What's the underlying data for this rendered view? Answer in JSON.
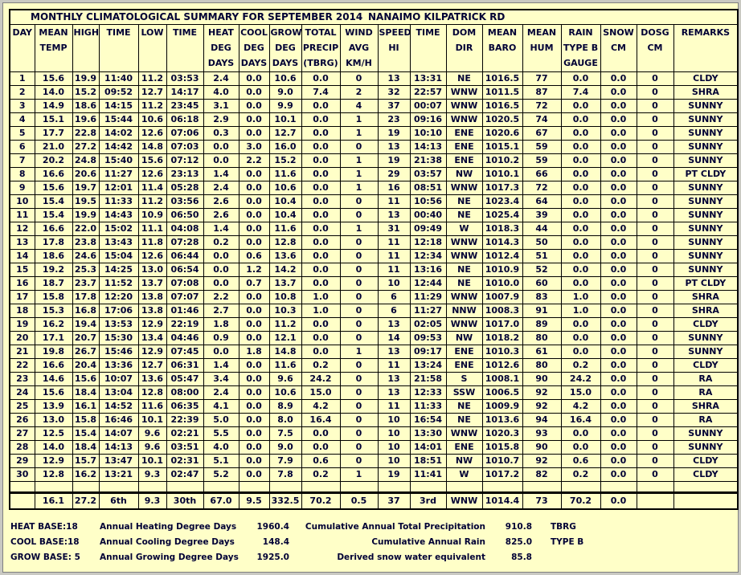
{
  "window": {
    "title_left": "MONTHLY CLIMATOLOGICAL SUMMARY FOR SEPTEMBER 2014",
    "title_right": "NANAIMO KILPATRICK RD"
  },
  "colors": {
    "background": "#FFFFC8",
    "text": "#000035",
    "grid_border": "#000000",
    "window_frame": "#C9C9C2"
  },
  "table": {
    "keys": [
      "day",
      "mean-temp",
      "high",
      "high-time",
      "low",
      "low-time",
      "heat-deg-days",
      "cool-deg-days",
      "grow-deg-days",
      "total-precip-tbrg",
      "wind-avg-kmh",
      "wind-speed-hi",
      "wind-time",
      "dom-dir",
      "mean-baro",
      "mean-hum",
      "rain-type-b-gauge",
      "snow-cm",
      "dosg-cm",
      "remarks"
    ],
    "headers": [
      [
        "DAY"
      ],
      [
        "MEAN",
        "TEMP"
      ],
      [
        "HIGH"
      ],
      [
        "TIME"
      ],
      [
        "LOW"
      ],
      [
        "TIME"
      ],
      [
        "HEAT",
        "DEG",
        "DAYS"
      ],
      [
        "COOL",
        "DEG",
        "DAYS"
      ],
      [
        "GROW",
        "DEG",
        "DAYS"
      ],
      [
        "TOTAL",
        "PRECIP",
        "(TBRG)"
      ],
      [
        "WIND",
        "AVG",
        "KM/H"
      ],
      [
        "SPEED",
        "HI"
      ],
      [
        "TIME"
      ],
      [
        "DOM",
        "DIR"
      ],
      [
        "MEAN",
        "BARO"
      ],
      [
        "MEAN",
        "HUM"
      ],
      [
        "RAIN",
        "TYPE B",
        "GAUGE"
      ],
      [
        "SNOW",
        "CM"
      ],
      [
        "DOSG",
        "CM"
      ],
      [
        "REMARKS"
      ]
    ],
    "rows": [
      [
        "1",
        "15.6",
        "19.9",
        "11:40",
        "11.2",
        "03:53",
        "2.4",
        "0.0",
        "10.6",
        "0.0",
        "0",
        "13",
        "13:31",
        "NE",
        "1016.5",
        "77",
        "0.0",
        "0.0",
        "0",
        "CLDY"
      ],
      [
        "2",
        "14.0",
        "15.2",
        "09:52",
        "12.7",
        "14:17",
        "4.0",
        "0.0",
        "9.0",
        "7.4",
        "2",
        "32",
        "22:57",
        "WNW",
        "1011.5",
        "87",
        "7.4",
        "0.0",
        "0",
        "SHRA"
      ],
      [
        "3",
        "14.9",
        "18.6",
        "14:15",
        "11.2",
        "23:45",
        "3.1",
        "0.0",
        "9.9",
        "0.0",
        "4",
        "37",
        "00:07",
        "WNW",
        "1016.5",
        "72",
        "0.0",
        "0.0",
        "0",
        "SUNNY"
      ],
      [
        "4",
        "15.1",
        "19.6",
        "15:44",
        "10.6",
        "06:18",
        "2.9",
        "0.0",
        "10.1",
        "0.0",
        "1",
        "23",
        "09:16",
        "WNW",
        "1020.5",
        "74",
        "0.0",
        "0.0",
        "0",
        "SUNNY"
      ],
      [
        "5",
        "17.7",
        "22.8",
        "14:02",
        "12.6",
        "07:06",
        "0.3",
        "0.0",
        "12.7",
        "0.0",
        "1",
        "19",
        "10:10",
        "ENE",
        "1020.6",
        "67",
        "0.0",
        "0.0",
        "0",
        "SUNNY"
      ],
      [
        "6",
        "21.0",
        "27.2",
        "14:42",
        "14.8",
        "07:03",
        "0.0",
        "3.0",
        "16.0",
        "0.0",
        "0",
        "13",
        "14:13",
        "ENE",
        "1015.1",
        "59",
        "0.0",
        "0.0",
        "0",
        "SUNNY"
      ],
      [
        "7",
        "20.2",
        "24.8",
        "15:40",
        "15.6",
        "07:12",
        "0.0",
        "2.2",
        "15.2",
        "0.0",
        "1",
        "19",
        "21:38",
        "ENE",
        "1010.2",
        "59",
        "0.0",
        "0.0",
        "0",
        "SUNNY"
      ],
      [
        "8",
        "16.6",
        "20.6",
        "11:27",
        "12.6",
        "23:13",
        "1.4",
        "0.0",
        "11.6",
        "0.0",
        "1",
        "29",
        "03:57",
        "NW",
        "1010.1",
        "66",
        "0.0",
        "0.0",
        "0",
        "PT CLDY"
      ],
      [
        "9",
        "15.6",
        "19.7",
        "12:01",
        "11.4",
        "05:28",
        "2.4",
        "0.0",
        "10.6",
        "0.0",
        "1",
        "16",
        "08:51",
        "WNW",
        "1017.3",
        "72",
        "0.0",
        "0.0",
        "0",
        "SUNNY"
      ],
      [
        "10",
        "15.4",
        "19.5",
        "11:33",
        "11.2",
        "03:56",
        "2.6",
        "0.0",
        "10.4",
        "0.0",
        "0",
        "11",
        "10:56",
        "NE",
        "1023.4",
        "64",
        "0.0",
        "0.0",
        "0",
        "SUNNY"
      ],
      [
        "11",
        "15.4",
        "19.9",
        "14:43",
        "10.9",
        "06:50",
        "2.6",
        "0.0",
        "10.4",
        "0.0",
        "0",
        "13",
        "00:40",
        "NE",
        "1025.4",
        "39",
        "0.0",
        "0.0",
        "0",
        "SUNNY"
      ],
      [
        "12",
        "16.6",
        "22.0",
        "15:02",
        "11.1",
        "04:08",
        "1.4",
        "0.0",
        "11.6",
        "0.0",
        "1",
        "31",
        "09:49",
        "W",
        "1018.3",
        "44",
        "0.0",
        "0.0",
        "0",
        "SUNNY"
      ],
      [
        "13",
        "17.8",
        "23.8",
        "13:43",
        "11.8",
        "07:28",
        "0.2",
        "0.0",
        "12.8",
        "0.0",
        "0",
        "11",
        "12:18",
        "WNW",
        "1014.3",
        "50",
        "0.0",
        "0.0",
        "0",
        "SUNNY"
      ],
      [
        "14",
        "18.6",
        "24.6",
        "15:04",
        "12.6",
        "06:44",
        "0.0",
        "0.6",
        "13.6",
        "0.0",
        "0",
        "11",
        "12:34",
        "WNW",
        "1012.4",
        "51",
        "0.0",
        "0.0",
        "0",
        "SUNNY"
      ],
      [
        "15",
        "19.2",
        "25.3",
        "14:25",
        "13.0",
        "06:54",
        "0.0",
        "1.2",
        "14.2",
        "0.0",
        "0",
        "11",
        "13:16",
        "NE",
        "1010.9",
        "52",
        "0.0",
        "0.0",
        "0",
        "SUNNY"
      ],
      [
        "16",
        "18.7",
        "23.7",
        "11:52",
        "13.7",
        "07:08",
        "0.0",
        "0.7",
        "13.7",
        "0.0",
        "0",
        "10",
        "12:44",
        "NE",
        "1010.0",
        "60",
        "0.0",
        "0.0",
        "0",
        "PT CLDY"
      ],
      [
        "17",
        "15.8",
        "17.8",
        "12:20",
        "13.8",
        "07:07",
        "2.2",
        "0.0",
        "10.8",
        "1.0",
        "0",
        "6",
        "11:29",
        "WNW",
        "1007.9",
        "83",
        "1.0",
        "0.0",
        "0",
        "SHRA"
      ],
      [
        "18",
        "15.3",
        "16.8",
        "17:06",
        "13.8",
        "01:46",
        "2.7",
        "0.0",
        "10.3",
        "1.0",
        "0",
        "6",
        "11:27",
        "NNW",
        "1008.3",
        "91",
        "1.0",
        "0.0",
        "0",
        "SHRA"
      ],
      [
        "19",
        "16.2",
        "19.4",
        "13:53",
        "12.9",
        "22:19",
        "1.8",
        "0.0",
        "11.2",
        "0.0",
        "0",
        "13",
        "02:05",
        "WNW",
        "1017.0",
        "89",
        "0.0",
        "0.0",
        "0",
        "CLDY"
      ],
      [
        "20",
        "17.1",
        "20.7",
        "15:30",
        "13.4",
        "04:46",
        "0.9",
        "0.0",
        "12.1",
        "0.0",
        "0",
        "14",
        "09:53",
        "NW",
        "1018.2",
        "80",
        "0.0",
        "0.0",
        "0",
        "SUNNY"
      ],
      [
        "21",
        "19.8",
        "26.7",
        "15:46",
        "12.9",
        "07:45",
        "0.0",
        "1.8",
        "14.8",
        "0.0",
        "1",
        "13",
        "09:17",
        "ENE",
        "1010.3",
        "61",
        "0.0",
        "0.0",
        "0",
        "SUNNY"
      ],
      [
        "22",
        "16.6",
        "20.4",
        "13:36",
        "12.7",
        "06:31",
        "1.4",
        "0.0",
        "11.6",
        "0.2",
        "0",
        "11",
        "13:24",
        "ENE",
        "1012.6",
        "80",
        "0.2",
        "0.0",
        "0",
        "CLDY"
      ],
      [
        "23",
        "14.6",
        "15.6",
        "10:07",
        "13.6",
        "05:47",
        "3.4",
        "0.0",
        "9.6",
        "24.2",
        "0",
        "13",
        "21:58",
        "S",
        "1008.1",
        "90",
        "24.2",
        "0.0",
        "0",
        "RA"
      ],
      [
        "24",
        "15.6",
        "18.4",
        "13:04",
        "12.8",
        "08:00",
        "2.4",
        "0.0",
        "10.6",
        "15.0",
        "0",
        "13",
        "12:33",
        "SSW",
        "1006.5",
        "92",
        "15.0",
        "0.0",
        "0",
        "RA"
      ],
      [
        "25",
        "13.9",
        "16.1",
        "14:52",
        "11.6",
        "06:35",
        "4.1",
        "0.0",
        "8.9",
        "4.2",
        "0",
        "11",
        "11:33",
        "NE",
        "1009.9",
        "92",
        "4.2",
        "0.0",
        "0",
        "SHRA"
      ],
      [
        "26",
        "13.0",
        "15.8",
        "16:46",
        "10.1",
        "22:39",
        "5.0",
        "0.0",
        "8.0",
        "16.4",
        "0",
        "10",
        "16:54",
        "NE",
        "1013.6",
        "94",
        "16.4",
        "0.0",
        "0",
        "RA"
      ],
      [
        "27",
        "12.5",
        "15.4",
        "14:07",
        "9.6",
        "02:21",
        "5.5",
        "0.0",
        "7.5",
        "0.0",
        "0",
        "10",
        "13:30",
        "WNW",
        "1020.3",
        "93",
        "0.0",
        "0.0",
        "0",
        "SUNNY"
      ],
      [
        "28",
        "14.0",
        "18.4",
        "14:13",
        "9.6",
        "03:51",
        "4.0",
        "0.0",
        "9.0",
        "0.0",
        "0",
        "10",
        "14:01",
        "ENE",
        "1015.8",
        "90",
        "0.0",
        "0.0",
        "0",
        "SUNNY"
      ],
      [
        "29",
        "12.9",
        "15.7",
        "13:47",
        "10.1",
        "02:31",
        "5.1",
        "0.0",
        "7.9",
        "0.6",
        "0",
        "10",
        "18:51",
        "NW",
        "1010.7",
        "92",
        "0.6",
        "0.0",
        "0",
        "CLDY"
      ],
      [
        "30",
        "12.8",
        "16.2",
        "13:21",
        "9.3",
        "02:47",
        "5.2",
        "0.0",
        "7.8",
        "0.2",
        "1",
        "19",
        "11:41",
        "W",
        "1017.2",
        "82",
        "0.2",
        "0.0",
        "0",
        "CLDY"
      ]
    ],
    "summary": [
      "",
      "16.1",
      "27.2",
      "6th",
      "9.3",
      "30th",
      "67.0",
      "9.5",
      "332.5",
      "70.2",
      "0.5",
      "37",
      "3rd",
      "WNW",
      "1014.4",
      "73",
      "70.2",
      "0.0",
      "",
      ""
    ]
  },
  "footer": {
    "rows": [
      {
        "base": "HEAT BASE:18",
        "annual_label": "Annual Heating Degree Days",
        "annual_value": "1960.4",
        "cumulative_label": "Cumulative Annual Total Precipitation",
        "cumulative_value": "910.8",
        "gauge": "TBRG"
      },
      {
        "base": "COOL BASE:18",
        "annual_label": "Annual Cooling Degree Days",
        "annual_value": "148.4",
        "cumulative_label": "Cumulative Annual Rain",
        "cumulative_value": "825.0",
        "gauge": "TYPE B"
      },
      {
        "base": "GROW BASE: 5",
        "annual_label": "Annual Growing Degree Days",
        "annual_value": "1925.0",
        "cumulative_label": "Derived snow water equivalent",
        "cumulative_value": "85.8",
        "gauge": ""
      }
    ]
  }
}
